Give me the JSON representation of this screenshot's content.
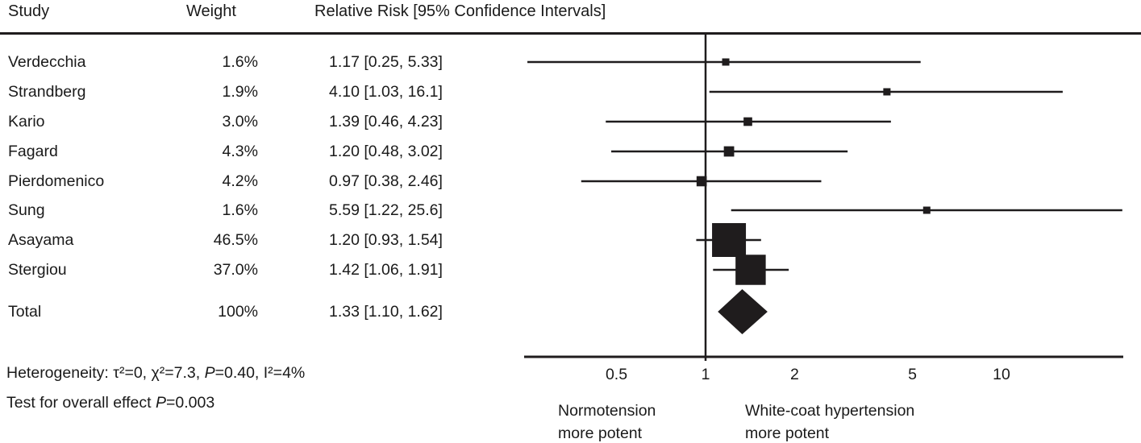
{
  "figure": {
    "header": {
      "study": "Study",
      "weight": "Weight",
      "relative_risk": "Relative Risk [95% Confidence Intervals]"
    },
    "table_rows": [
      {
        "study": "Verdecchia",
        "weight": "1.6%",
        "rr": "1.17 [0.25, 5.33]"
      },
      {
        "study": "Strandberg",
        "weight": "1.9%",
        "rr": "4.10 [1.03, 16.1]"
      },
      {
        "study": "Kario",
        "weight": "3.0%",
        "rr": "1.39 [0.46, 4.23]"
      },
      {
        "study": "Fagard",
        "weight": "4.3%",
        "rr": "1.20 [0.48, 3.02]"
      },
      {
        "study": "Pierdomenico",
        "weight": "4.2%",
        "rr": "0.97 [0.38, 2.46]"
      },
      {
        "study": "Sung",
        "weight": "1.6%",
        "rr": "5.59 [1.22, 25.6]"
      },
      {
        "study": "Asayama",
        "weight": "46.5%",
        "rr": "1.20 [0.93, 1.54]"
      },
      {
        "study": "Stergiou",
        "weight": "37.0%",
        "rr": "1.42 [1.06, 1.91]"
      },
      {
        "study": "Total",
        "weight": "100%",
        "rr": "1.33 [1.10, 1.62]"
      }
    ],
    "footnotes": {
      "heterogeneity_prefix": "Heterogeneity: τ²=0, χ²=7.3, ",
      "heterogeneity_p": "P",
      "heterogeneity_suffix": "=0.40, I²=4%",
      "overall_prefix": "Test for overall effect ",
      "overall_p": "P",
      "overall_suffix": "=0.003"
    },
    "axis_region_labels": {
      "left_line1": "Normotension",
      "left_line2": "more potent",
      "right_line1": "White-coat hypertension",
      "right_line2": "more potent"
    }
  },
  "chart_data": {
    "type": "forest",
    "x_scale": "log10",
    "x_ticks": [
      0.5,
      1,
      2,
      5,
      10
    ],
    "reference_value": 1,
    "x_axis_range": [
      0.25,
      26
    ],
    "studies": [
      {
        "name": "Verdecchia",
        "weight_pct": 1.6,
        "rr": 1.17,
        "ci_low": 0.25,
        "ci_high": 5.33
      },
      {
        "name": "Strandberg",
        "weight_pct": 1.9,
        "rr": 4.1,
        "ci_low": 1.03,
        "ci_high": 16.1
      },
      {
        "name": "Kario",
        "weight_pct": 3.0,
        "rr": 1.39,
        "ci_low": 0.46,
        "ci_high": 4.23
      },
      {
        "name": "Fagard",
        "weight_pct": 4.3,
        "rr": 1.2,
        "ci_low": 0.48,
        "ci_high": 3.02
      },
      {
        "name": "Pierdomenico",
        "weight_pct": 4.2,
        "rr": 0.97,
        "ci_low": 0.38,
        "ci_high": 2.46
      },
      {
        "name": "Sung",
        "weight_pct": 1.6,
        "rr": 5.59,
        "ci_low": 1.22,
        "ci_high": 25.6
      },
      {
        "name": "Asayama",
        "weight_pct": 46.5,
        "rr": 1.2,
        "ci_low": 0.93,
        "ci_high": 1.54
      },
      {
        "name": "Stergiou",
        "weight_pct": 37.0,
        "rr": 1.42,
        "ci_low": 1.06,
        "ci_high": 1.91
      }
    ],
    "total": {
      "name": "Total",
      "weight_pct": 100,
      "rr": 1.33,
      "ci_low": 1.1,
      "ci_high": 1.62
    },
    "heterogeneity": {
      "tau2": 0,
      "chi2": 7.3,
      "p": 0.4,
      "i2_pct": 4
    },
    "overall_effect_p": 0.003,
    "ink_color": "#1f1c1d"
  }
}
